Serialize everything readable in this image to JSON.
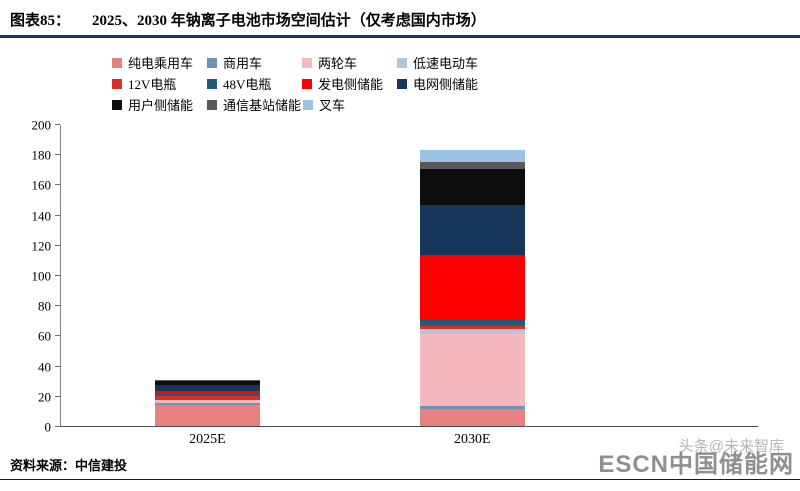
{
  "header": {
    "label": "图表85：",
    "title": "2025、2030 年钠离子电池市场空间估计（仅考虑国内市场）"
  },
  "chart_data": {
    "type": "bar",
    "stacked": true,
    "title": "2025、2030 年钠离子电池市场空间估计（仅考虑国内市场）",
    "categories": [
      "2025E",
      "2030E"
    ],
    "series": [
      {
        "name": "纯电乘用车",
        "color": "#E88080",
        "values": [
          14,
          11
        ]
      },
      {
        "name": "商用车",
        "color": "#7092B4",
        "values": [
          1,
          2
        ]
      },
      {
        "name": "两轮车",
        "color": "#F5B8BC",
        "values": [
          2,
          48
        ]
      },
      {
        "name": "低速电动车",
        "color": "#B4C5D8",
        "values": [
          0.5,
          3
        ]
      },
      {
        "name": "12V电瓶",
        "color": "#D93025",
        "values": [
          2.5,
          2.5
        ]
      },
      {
        "name": "48V电瓶",
        "color": "#1F5C7C",
        "values": [
          2,
          4
        ]
      },
      {
        "name": "发电侧储能",
        "color": "#FE0000",
        "values": [
          1,
          43
        ]
      },
      {
        "name": "电网侧储能",
        "color": "#16365C",
        "values": [
          4,
          33
        ]
      },
      {
        "name": "用户侧储能",
        "color": "#0D0D0D",
        "values": [
          3,
          24
        ]
      },
      {
        "name": "通信基站储能",
        "color": "#595959",
        "values": [
          0.3,
          4.5
        ]
      },
      {
        "name": "叉车",
        "color": "#9CC2E5",
        "values": [
          0.2,
          8
        ]
      }
    ],
    "xlabel": "",
    "ylabel": "",
    "ylim": [
      0,
      200
    ],
    "yticks": [
      0,
      20,
      40,
      60,
      80,
      100,
      120,
      140,
      160,
      180,
      200
    ],
    "grid": false,
    "legend_position": "top",
    "legend_rows": [
      4,
      4,
      3
    ],
    "accent_color": "#16365C"
  },
  "footer": {
    "source": "资料来源：中信建投"
  },
  "watermark": {
    "back": "头条@未来智库",
    "front": "ESCN中国储能网"
  }
}
